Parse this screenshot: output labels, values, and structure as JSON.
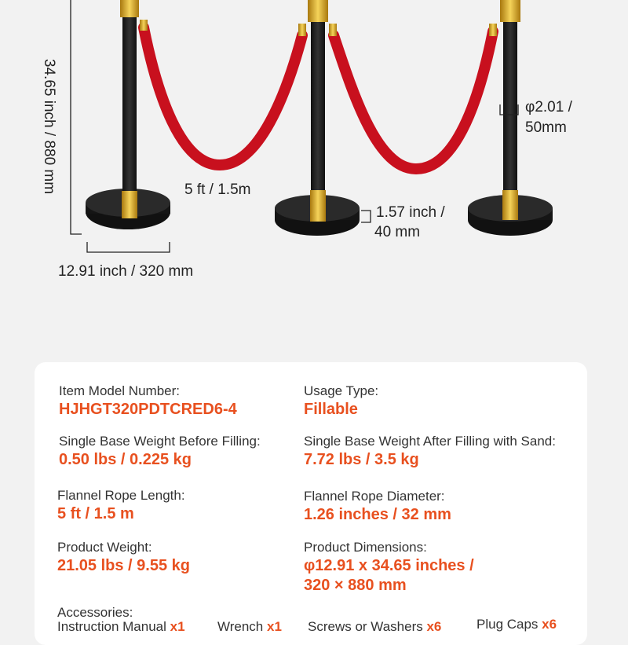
{
  "dimensions": {
    "height": "34.65 inch  /  880 mm",
    "rope_span": "5 ft  /  1.5m",
    "base_width": "12.91 inch  /  320 mm",
    "base_height_line1": "1.57 inch /",
    "base_height_line2": "40 mm",
    "pole_diameter_line1": "φ2.01 /",
    "pole_diameter_line2": "50mm"
  },
  "specs": [
    {
      "label": "Item Model Number:",
      "value": "HJHGT320PDTCRED6-4"
    },
    {
      "label": "Usage Type:",
      "value": "Fillable"
    },
    {
      "label": "Single Base Weight Before Filling:",
      "value": "0.50 lbs / 0.225 kg"
    },
    {
      "label": "Single Base Weight After Filling with Sand:",
      "value": "7.72 lbs / 3.5 kg"
    },
    {
      "label": "Flannel Rope Length:",
      "value": "5 ft / 1.5 m"
    },
    {
      "label": "Flannel Rope Diameter:",
      "value": "1.26 inches / 32 mm"
    },
    {
      "label": "Product Weight:",
      "value": "21.05 lbs / 9.55 kg"
    },
    {
      "label": "Product Dimensions:",
      "value": "φ12.91 x 34.65 inches /",
      "value2": "320 × 880 mm"
    }
  ],
  "accessories": {
    "label": "Accessories:",
    "items": [
      {
        "name": "Instruction Manual",
        "qty": "x1"
      },
      {
        "name": "Wrench",
        "qty": "x1"
      },
      {
        "name": "Screws or Washers",
        "qty": "x6"
      },
      {
        "name": "Plug Caps",
        "qty": "x6"
      }
    ]
  },
  "colors": {
    "accent": "#e8501f",
    "rope": "#c8101e",
    "gold": "#d9a521",
    "pole": "#1a1a1a"
  }
}
